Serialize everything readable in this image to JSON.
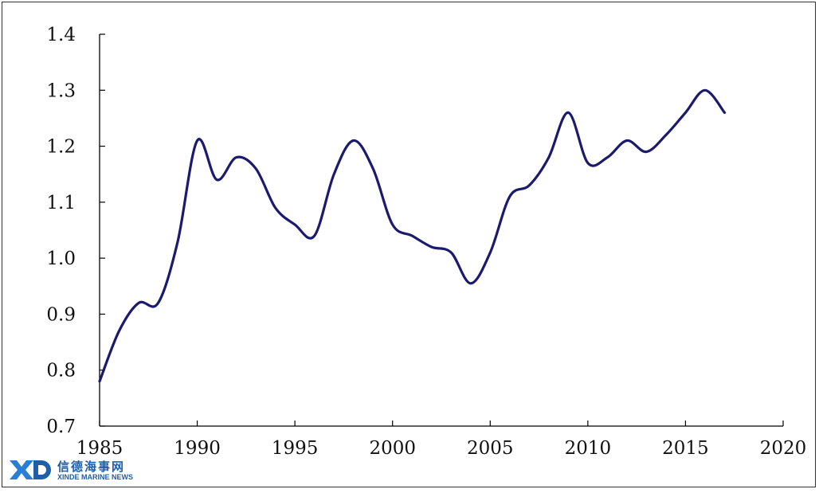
{
  "chart_data": {
    "type": "line",
    "title": "",
    "xlabel": "",
    "ylabel": "",
    "xlim": [
      1985,
      2020
    ],
    "ylim": [
      0.7,
      1.4
    ],
    "x_ticks": [
      "1985",
      "1990",
      "1995",
      "2000",
      "2005",
      "2010",
      "2015",
      "2020"
    ],
    "y_ticks": [
      "0.7",
      "0.8",
      "0.9",
      "1.0",
      "1.1",
      "1.2",
      "1.3",
      "1.4"
    ],
    "y_tick_values": [
      0.7,
      0.8,
      0.9,
      1.0,
      1.1,
      1.2,
      1.3,
      1.4
    ],
    "x_tick_values": [
      1985,
      1990,
      1995,
      2000,
      2005,
      2010,
      2015,
      2020
    ],
    "grid": false,
    "legend": "none",
    "series": [
      {
        "color": "#1a1a6e",
        "x": [
          1985,
          1986,
          1987,
          1988,
          1989,
          1990,
          1991,
          1992,
          1993,
          1994,
          1995,
          1996,
          1997,
          1998,
          1999,
          2000,
          2001,
          2002,
          2003,
          2004,
          2005,
          2006,
          2007,
          2008,
          2009,
          2010,
          2011,
          2012,
          2013,
          2014,
          2015,
          2016,
          2017
        ],
        "y": [
          0.78,
          0.87,
          0.92,
          0.92,
          1.03,
          1.21,
          1.14,
          1.18,
          1.16,
          1.09,
          1.06,
          1.04,
          1.15,
          1.21,
          1.16,
          1.06,
          1.04,
          1.02,
          1.01,
          0.955,
          1.01,
          1.11,
          1.13,
          1.18,
          1.26,
          1.17,
          1.18,
          1.21,
          1.19,
          1.22,
          1.26,
          1.3,
          1.26
        ]
      }
    ]
  },
  "watermark": {
    "logo_text": "XD",
    "cn_text": "信德海事网",
    "en_text": "XINDE MARINE NEWS"
  }
}
